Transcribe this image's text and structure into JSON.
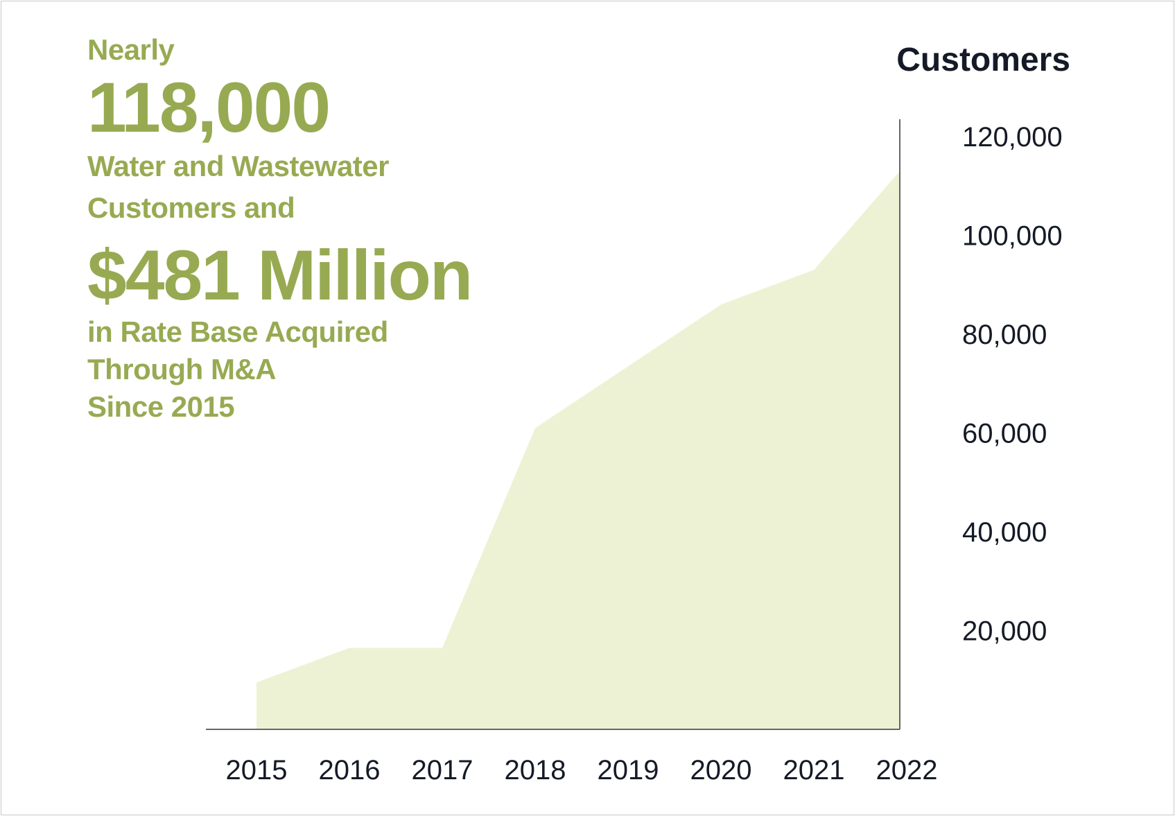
{
  "headline": {
    "prefix": "Nearly",
    "customers_figure": "118,000",
    "customers_line1": "Water and Wastewater",
    "customers_line2": "Customers and",
    "rate_base_figure": "$481 Million",
    "rate_base_line1": "in Rate Base Acquired",
    "rate_base_line2": "Through M&A",
    "rate_base_line3": "Since 2015"
  },
  "colors": {
    "accent": "#97aa52",
    "area_fill": "#eef2d5",
    "axis": "#666666",
    "text_dark": "#141a26"
  },
  "chart_data": {
    "type": "area",
    "title": "",
    "ylabel": "Customers",
    "xlabel": "",
    "categories": [
      "2015",
      "2016",
      "2017",
      "2018",
      "2019",
      "2020",
      "2021",
      "2022"
    ],
    "values": [
      9500,
      16500,
      16500,
      61000,
      73500,
      86000,
      93000,
      113000
    ],
    "ylim": [
      0,
      122000
    ],
    "yticks": [
      20000,
      40000,
      60000,
      80000,
      100000,
      120000
    ],
    "ytick_labels": [
      "20,000",
      "40,000",
      "60,000",
      "80,000",
      "100,000",
      "120,000"
    ],
    "y_axis_side": "right",
    "grid": false,
    "legend": "none"
  }
}
